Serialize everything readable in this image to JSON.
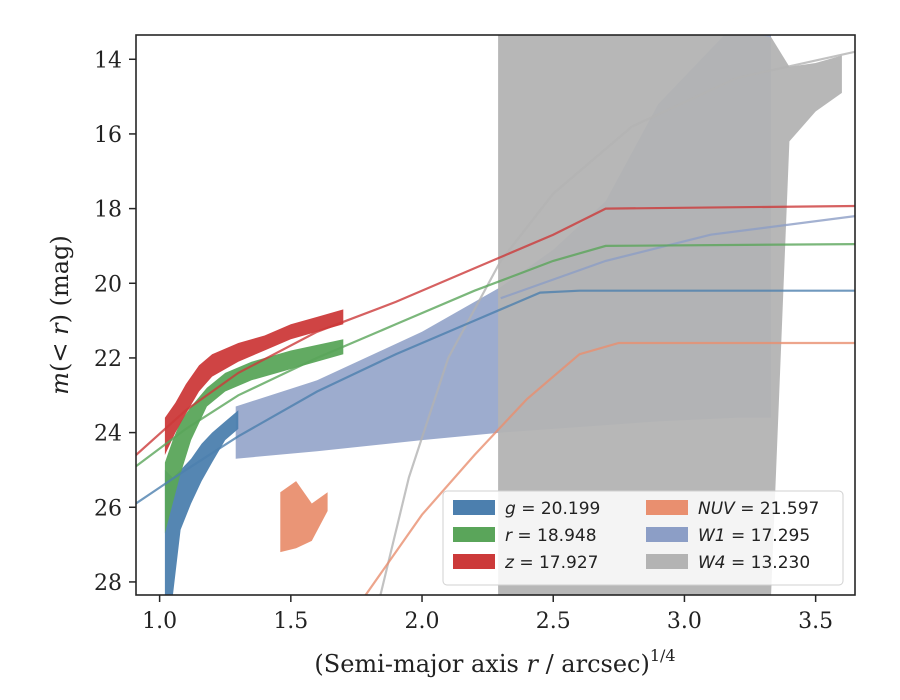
{
  "chart_data": {
    "type": "line",
    "title": "",
    "xlabel_main": "(Semi-major axis ",
    "xlabel_var": "r",
    "xlabel_mid": " / arcsec)",
    "xlabel_sup": "1/4",
    "ylabel": "m(< r) (mag)",
    "xlim": [
      0.91,
      3.65
    ],
    "ylim": [
      28.35,
      13.35
    ],
    "y_inverted": true,
    "xticks": [
      1.0,
      1.5,
      2.0,
      2.5,
      3.0,
      3.5
    ],
    "xtick_labels": [
      "1.0",
      "1.5",
      "2.0",
      "2.5",
      "3.0",
      "3.5"
    ],
    "yticks": [
      14,
      16,
      18,
      20,
      22,
      24,
      26,
      28
    ],
    "ytick_labels": [
      "14",
      "16",
      "18",
      "20",
      "22",
      "24",
      "26",
      "28"
    ],
    "grid": false,
    "legend_position": "lower-right",
    "series": [
      {
        "name": "g = 20.199",
        "legend_var": "g",
        "legend_value": "= 20.199",
        "color": "#4c7fae",
        "band": [
          [
            1.02,
            28.4,
            25.0
          ],
          [
            1.05,
            28.4,
            25.2
          ],
          [
            1.08,
            26.6,
            25.0
          ],
          [
            1.12,
            25.9,
            24.7
          ],
          [
            1.16,
            25.3,
            24.3
          ],
          [
            1.2,
            24.8,
            24.0
          ],
          [
            1.25,
            24.2,
            23.7
          ],
          [
            1.3,
            23.9,
            23.4
          ]
        ],
        "model": [
          [
            0.91,
            25.9
          ],
          [
            1.1,
            25.0
          ],
          [
            1.3,
            24.1
          ],
          [
            1.6,
            22.9
          ],
          [
            1.9,
            21.9
          ],
          [
            2.2,
            21.0
          ],
          [
            2.45,
            20.25
          ],
          [
            2.6,
            20.2
          ],
          [
            3.65,
            20.2
          ]
        ]
      },
      {
        "name": "r = 18.948",
        "legend_var": "r",
        "legend_value": "= 18.948",
        "color": "#5aa55a",
        "band": [
          [
            1.02,
            26.7,
            24.8
          ],
          [
            1.05,
            25.9,
            24.2
          ],
          [
            1.08,
            25.1,
            23.7
          ],
          [
            1.12,
            24.2,
            23.3
          ],
          [
            1.18,
            23.3,
            22.8
          ],
          [
            1.25,
            22.9,
            22.4
          ],
          [
            1.35,
            22.6,
            22.1
          ],
          [
            1.5,
            22.3,
            21.8
          ],
          [
            1.7,
            21.9,
            21.5
          ]
        ],
        "model": [
          [
            0.91,
            24.9
          ],
          [
            1.1,
            23.9
          ],
          [
            1.3,
            23.0
          ],
          [
            1.6,
            22.0
          ],
          [
            1.9,
            21.1
          ],
          [
            2.2,
            20.2
          ],
          [
            2.5,
            19.4
          ],
          [
            2.7,
            19.0
          ],
          [
            3.65,
            18.95
          ]
        ]
      },
      {
        "name": "z = 17.927",
        "legend_var": "z",
        "legend_value": "= 17.927",
        "color": "#cc3a3a",
        "band": [
          [
            1.02,
            24.6,
            23.6
          ],
          [
            1.06,
            24.0,
            23.2
          ],
          [
            1.1,
            23.5,
            22.7
          ],
          [
            1.15,
            22.9,
            22.2
          ],
          [
            1.2,
            22.5,
            21.9
          ],
          [
            1.3,
            22.1,
            21.6
          ],
          [
            1.4,
            21.8,
            21.4
          ],
          [
            1.5,
            21.5,
            21.1
          ],
          [
            1.6,
            21.3,
            20.9
          ],
          [
            1.7,
            21.1,
            20.7
          ]
        ],
        "model": [
          [
            0.91,
            24.6
          ],
          [
            1.1,
            23.4
          ],
          [
            1.3,
            22.4
          ],
          [
            1.6,
            21.3
          ],
          [
            1.9,
            20.5
          ],
          [
            2.2,
            19.6
          ],
          [
            2.5,
            18.7
          ],
          [
            2.7,
            18.0
          ],
          [
            3.65,
            17.93
          ]
        ]
      },
      {
        "name": "NUV = 21.597",
        "legend_var": "NUV",
        "legend_value": "= 21.597",
        "color": "#e98f6f",
        "band": [
          [
            1.46,
            27.2,
            25.6
          ],
          [
            1.52,
            27.1,
            25.3
          ],
          [
            1.58,
            26.9,
            25.9
          ],
          [
            1.64,
            26.1,
            25.6
          ]
        ],
        "model": [
          [
            1.78,
            28.4
          ],
          [
            2.0,
            26.2
          ],
          [
            2.2,
            24.6
          ],
          [
            2.4,
            23.1
          ],
          [
            2.6,
            21.9
          ],
          [
            2.75,
            21.6
          ],
          [
            3.65,
            21.6
          ]
        ]
      },
      {
        "name": "W1 = 17.295",
        "legend_var": "W1",
        "legend_value": "= 17.295",
        "color": "#8c9ec6",
        "band": [
          [
            1.29,
            24.7,
            23.3
          ],
          [
            1.6,
            24.5,
            22.6
          ],
          [
            2.0,
            24.2,
            21.3
          ],
          [
            2.3,
            24.0,
            20.1
          ],
          [
            2.5,
            23.9,
            19.1
          ],
          [
            2.7,
            23.8,
            17.8
          ],
          [
            2.9,
            23.7,
            15.2
          ],
          [
            3.2,
            23.6,
            13.0
          ],
          [
            3.33,
            23.6,
            13.0
          ]
        ],
        "model": [
          [
            2.3,
            20.4
          ],
          [
            2.7,
            19.4
          ],
          [
            3.1,
            18.7
          ],
          [
            3.65,
            18.2
          ]
        ]
      },
      {
        "name": "W4 = 13.230",
        "legend_var": "W4",
        "legend_value": "= 13.230",
        "color": "#b3b3b3",
        "band": [
          [
            2.29,
            28.4,
            13.0
          ],
          [
            2.4,
            28.4,
            13.0
          ],
          [
            2.5,
            28.4,
            13.0
          ],
          [
            2.6,
            28.4,
            13.0
          ],
          [
            2.74,
            28.4,
            13.0
          ],
          [
            2.9,
            28.4,
            13.0
          ],
          [
            3.1,
            28.4,
            13.2
          ],
          [
            3.33,
            28.4,
            13.4
          ],
          [
            3.4,
            16.2,
            14.2
          ],
          [
            3.5,
            15.4,
            14.1
          ],
          [
            3.6,
            14.9,
            13.9
          ]
        ],
        "model": [
          [
            1.84,
            28.4
          ],
          [
            1.95,
            25.2
          ],
          [
            2.1,
            22.0
          ],
          [
            2.3,
            19.4
          ],
          [
            2.5,
            17.6
          ],
          [
            2.8,
            15.8
          ],
          [
            3.2,
            14.5
          ],
          [
            3.65,
            13.8
          ]
        ]
      }
    ]
  }
}
